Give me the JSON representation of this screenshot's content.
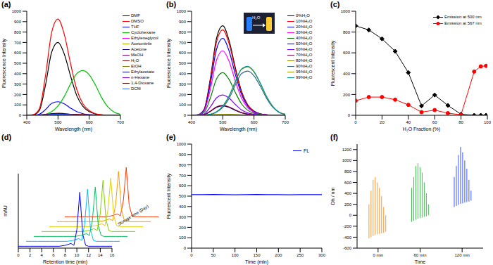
{
  "chart_data": [
    {
      "type": "line",
      "title": "(a)",
      "x_label": "Wavelength (nm)",
      "y_label": "Fluorescence Intensity",
      "x": [
        400,
        420,
        440,
        460,
        480,
        500,
        520,
        540,
        560,
        580,
        600,
        620,
        640,
        660,
        680,
        700
      ],
      "xlim": [
        400,
        700
      ],
      "xticks": [
        400,
        500,
        600,
        700
      ],
      "ylim": [
        0,
        1000
      ],
      "yticks": [
        0,
        100,
        200,
        300,
        400,
        500,
        600,
        700,
        800,
        900,
        1000
      ],
      "legend": "right",
      "series": [
        {
          "name": "DMF",
          "color": "#000000",
          "values": [
            0,
            4,
            45,
            290,
            610,
            700,
            590,
            380,
            190,
            85,
            35,
            12,
            4,
            1,
            0,
            0
          ]
        },
        {
          "name": "DMSO",
          "color": "#ff0000",
          "values": [
            0,
            5,
            60,
            380,
            800,
            925,
            780,
            500,
            250,
            110,
            45,
            15,
            5,
            2,
            0,
            0
          ]
        },
        {
          "name": "THF",
          "color": "#0000ff",
          "values": [
            0,
            1,
            10,
            55,
            115,
            130,
            110,
            70,
            35,
            15,
            6,
            2,
            1,
            0,
            0,
            0
          ]
        },
        {
          "name": "Cyclohexane",
          "color": "#00c000",
          "values": [
            0,
            0,
            2,
            10,
            35,
            90,
            180,
            300,
            400,
            430,
            390,
            290,
            170,
            80,
            30,
            10
          ]
        },
        {
          "name": "Ethyleneglycol",
          "color": "#ff00ff",
          "values": [
            0,
            0,
            1,
            4,
            8,
            10,
            8,
            5,
            3,
            2,
            1,
            0,
            0,
            0,
            0,
            0
          ]
        },
        {
          "name": "Acetonitrile",
          "color": "#b0b000",
          "values": [
            0,
            0,
            1,
            3,
            6,
            8,
            7,
            5,
            3,
            2,
            1,
            0,
            0,
            0,
            0,
            0
          ]
        },
        {
          "name": "Acetone",
          "color": "#000080",
          "values": [
            0,
            0,
            2,
            5,
            9,
            12,
            10,
            7,
            4,
            2,
            1,
            0,
            0,
            0,
            0,
            0
          ]
        },
        {
          "name": "MeOH",
          "color": "#800080",
          "values": [
            0,
            0,
            1,
            3,
            7,
            9,
            8,
            6,
            4,
            2,
            1,
            0,
            0,
            0,
            0,
            0
          ]
        },
        {
          "name": "H₂O",
          "color": "#800000",
          "values": [
            0,
            0,
            1,
            2,
            4,
            6,
            7,
            8,
            8,
            7,
            5,
            3,
            2,
            1,
            0,
            0
          ]
        },
        {
          "name": "EtOH",
          "color": "#808000",
          "values": [
            0,
            0,
            1,
            3,
            6,
            8,
            7,
            5,
            3,
            2,
            1,
            0,
            0,
            0,
            0,
            0
          ]
        },
        {
          "name": "Ethylacetate",
          "color": "#0000a0",
          "values": [
            0,
            0,
            2,
            6,
            12,
            15,
            12,
            8,
            4,
            2,
            1,
            0,
            0,
            0,
            0,
            0
          ]
        },
        {
          "name": "n-Hexane",
          "color": "#9900cc",
          "values": [
            0,
            0,
            1,
            2,
            4,
            5,
            4,
            3,
            2,
            1,
            0,
            0,
            0,
            0,
            0,
            0
          ]
        },
        {
          "name": "1,4-Dioxane",
          "color": "#660000",
          "values": [
            0,
            0,
            2,
            8,
            16,
            20,
            16,
            10,
            5,
            2,
            1,
            0,
            0,
            0,
            0,
            0
          ]
        },
        {
          "name": "DCM",
          "color": "#3366ff",
          "values": [
            0,
            0,
            1,
            4,
            8,
            10,
            8,
            6,
            3,
            2,
            1,
            0,
            0,
            0,
            0,
            0
          ]
        }
      ]
    },
    {
      "type": "line",
      "title": "(b)",
      "x_label": "Wavelength (nm)",
      "y_label": "Fluorescence Intensity",
      "annotations": [
        "H₂O"
      ],
      "x": [
        400,
        420,
        440,
        460,
        480,
        500,
        520,
        540,
        560,
        580,
        600,
        620,
        640,
        660,
        680,
        700
      ],
      "xlim": [
        400,
        700
      ],
      "xticks": [
        400,
        500,
        600,
        700
      ],
      "ylim": [
        0,
        1000
      ],
      "yticks": [
        0,
        100,
        200,
        300,
        400,
        500,
        600,
        700,
        800,
        900,
        1000
      ],
      "legend": "right",
      "series": [
        {
          "name": "0%H₂O",
          "color": "#000000",
          "values": [
            0,
            5,
            55,
            350,
            740,
            860,
            720,
            460,
            230,
            100,
            40,
            14,
            5,
            2,
            0,
            0
          ]
        },
        {
          "name": "10%H₂O",
          "color": "#ff0000",
          "values": [
            0,
            5,
            52,
            335,
            705,
            820,
            690,
            440,
            220,
            95,
            38,
            13,
            5,
            2,
            0,
            0
          ]
        },
        {
          "name": "20%H₂O",
          "color": "#0000ff",
          "values": [
            0,
            4,
            47,
            300,
            635,
            740,
            620,
            395,
            200,
            86,
            34,
            12,
            4,
            1,
            0,
            0
          ]
        },
        {
          "name": "30%H₂O",
          "color": "#ff00ff",
          "values": [
            0,
            3,
            40,
            250,
            530,
            620,
            520,
            330,
            165,
            72,
            28,
            10,
            3,
            1,
            0,
            0
          ]
        },
        {
          "name": "40%H₂O",
          "color": "#008000",
          "values": [
            0,
            2,
            26,
            165,
            350,
            410,
            345,
            220,
            110,
            48,
            19,
            7,
            2,
            1,
            0,
            0
          ]
        },
        {
          "name": "50%H₂O",
          "color": "#000080",
          "values": [
            0,
            1,
            6,
            37,
            77,
            90,
            76,
            48,
            24,
            11,
            4,
            2,
            1,
            0,
            0,
            0
          ]
        },
        {
          "name": "60%H₂O",
          "color": "#8000ff",
          "values": [
            0,
            1,
            12,
            80,
            167,
            195,
            165,
            105,
            52,
            23,
            9,
            3,
            1,
            0,
            0,
            0
          ]
        },
        {
          "name": "70%H₂O",
          "color": "#800040",
          "values": [
            0,
            1,
            6,
            38,
            81,
            95,
            80,
            51,
            26,
            11,
            5,
            2,
            1,
            0,
            0,
            0
          ]
        },
        {
          "name": "80%H₂O",
          "color": "#808000",
          "values": [
            0,
            0,
            1,
            4,
            8,
            10,
            9,
            7,
            5,
            3,
            2,
            1,
            0,
            0,
            0,
            0
          ]
        },
        {
          "name": "90%H₂O",
          "color": "#336699",
          "values": [
            0,
            0,
            2,
            8,
            30,
            75,
            160,
            290,
            400,
            425,
            380,
            280,
            165,
            78,
            28,
            9
          ]
        },
        {
          "name": "95%H₂O",
          "color": "#999900",
          "values": [
            0,
            0,
            2,
            9,
            33,
            85,
            180,
            320,
            440,
            465,
            415,
            305,
            180,
            85,
            30,
            10
          ]
        },
        {
          "name": "99%H₂O",
          "color": "#009999",
          "values": [
            0,
            0,
            2,
            9,
            34,
            88,
            185,
            325,
            445,
            470,
            420,
            310,
            182,
            86,
            31,
            10
          ]
        }
      ]
    },
    {
      "type": "line",
      "title": "(c)",
      "x_label": "H₂O Fraction (%)",
      "y_label": "Fluorescent Intensity",
      "x": [
        0,
        10,
        20,
        30,
        40,
        50,
        60,
        70,
        80,
        90,
        95,
        99
      ],
      "xlim": [
        0,
        100
      ],
      "xticks": [
        0,
        20,
        40,
        60,
        80,
        100
      ],
      "ylim": [
        0,
        1000
      ],
      "yticks": [
        0,
        200,
        400,
        600,
        800,
        1000
      ],
      "legend": "upper right",
      "series": [
        {
          "name": "Emission at 500 nm",
          "color": "#000000",
          "marker": "diamond",
          "values": [
            860,
            820,
            735,
            615,
            410,
            90,
            195,
            95,
            10,
            0,
            0,
            0
          ]
        },
        {
          "name": "Emission at 567 nm",
          "color": "#ff0000",
          "marker": "circle",
          "values": [
            140,
            175,
            175,
            150,
            100,
            30,
            50,
            20,
            5,
            420,
            470,
            475
          ]
        }
      ]
    },
    {
      "type": "line",
      "title": "(d)",
      "x_label": "Retention time (min)",
      "y_label": "mAU",
      "z_label": "Storage time (Day)",
      "x": [
        0,
        1,
        2,
        3,
        4,
        5,
        6,
        7,
        8,
        9,
        9.5,
        10,
        10.5,
        11,
        11.5,
        12,
        13,
        14,
        15,
        16
      ],
      "xlim": [
        0,
        16
      ],
      "xticks": [
        0,
        2,
        4,
        6,
        8,
        10,
        12,
        14,
        16
      ],
      "ylim": [
        0,
        80
      ],
      "tick_labels": "x",
      "series": [
        {
          "color": "#0000ff",
          "values": [
            2,
            2,
            2,
            2,
            2,
            2,
            2,
            2,
            3,
            5,
            3,
            20,
            60,
            15,
            3,
            2,
            2,
            2,
            2,
            2
          ]
        },
        {
          "color": "#00bfff",
          "values": [
            2,
            2,
            2,
            2,
            2,
            2,
            2,
            2,
            3,
            5,
            3,
            20,
            58,
            15,
            3,
            2,
            2,
            2,
            2,
            2
          ]
        },
        {
          "color": "#00c060",
          "values": [
            2,
            2,
            2,
            2,
            2,
            2,
            2,
            2,
            3,
            5,
            3,
            19,
            55,
            14,
            3,
            2,
            2,
            2,
            2,
            2
          ]
        },
        {
          "color": "#80d000",
          "values": [
            2,
            2,
            2,
            2,
            2,
            2,
            2,
            2,
            3,
            5,
            3,
            20,
            57,
            15,
            3,
            2,
            2,
            2,
            2,
            2
          ]
        },
        {
          "color": "#e0d000",
          "values": [
            2,
            2,
            2,
            2,
            2,
            2,
            2,
            2,
            3,
            5,
            3,
            19,
            54,
            14,
            3,
            2,
            2,
            2,
            2,
            2
          ]
        },
        {
          "color": "#ff9900",
          "values": [
            2,
            2,
            2,
            2,
            2,
            2,
            2,
            2,
            3,
            5,
            3,
            20,
            56,
            15,
            3,
            2,
            2,
            2,
            2,
            2
          ]
        },
        {
          "color": "#ff3300",
          "values": [
            2,
            2,
            2,
            2,
            2,
            2,
            2,
            2,
            3,
            5,
            3,
            19,
            55,
            14,
            3,
            2,
            2,
            2,
            2,
            2
          ]
        }
      ]
    },
    {
      "type": "line",
      "title": "(e)",
      "x_label": "Time (min)",
      "y_label": "Fluorescent Intensity",
      "x": [
        0,
        25,
        50,
        75,
        100,
        125,
        150,
        175,
        200,
        225,
        250,
        275,
        300
      ],
      "xlim": [
        0,
        300
      ],
      "xticks": [
        0,
        50,
        100,
        150,
        200,
        250,
        300
      ],
      "ylim": [
        0,
        1000
      ],
      "yticks": [
        0,
        100,
        200,
        300,
        400,
        500,
        600,
        700,
        800,
        900,
        1000
      ],
      "legend": "upper right",
      "series": [
        {
          "name": "FL",
          "color": "#0000ff",
          "values": [
            515,
            514,
            516,
            515,
            513,
            515,
            516,
            514,
            515,
            513,
            514,
            515,
            514
          ]
        }
      ]
    },
    {
      "type": "bar",
      "title": "(f)",
      "x_label": "Time",
      "y_label": "Dh / nm",
      "xlim": [
        -30,
        150
      ],
      "xticks": [
        {
          "value": 0,
          "label": "0 min"
        },
        {
          "value": 60,
          "label": "60 min"
        },
        {
          "value": 120,
          "label": "120 min"
        }
      ],
      "ylim": [
        -600,
        1300
      ],
      "yticks": [
        -600,
        -400,
        -200,
        0,
        200,
        400,
        600,
        800,
        1000,
        1200
      ],
      "series": [
        {
          "color": "#ff8c1a",
          "x": [
            -12,
            -9,
            -6,
            -3,
            0,
            3,
            6,
            9,
            12
          ],
          "low": [
            -420,
            -400,
            -380,
            -360,
            -350,
            -340,
            -330,
            -320,
            -300
          ],
          "high": [
            200,
            450,
            650,
            700,
            600,
            500,
            350,
            150,
            0
          ]
        },
        {
          "color": "#22bb33",
          "x": [
            48,
            51,
            54,
            57,
            60,
            63,
            66,
            69,
            72
          ],
          "low": [
            -120,
            -100,
            -80,
            -60,
            -50,
            -40,
            -30,
            -20,
            0
          ],
          "high": [
            500,
            700,
            900,
            950,
            880,
            780,
            600,
            400,
            200
          ]
        },
        {
          "color": "#2244ff",
          "x": [
            108,
            111,
            114,
            117,
            120,
            123,
            126,
            129,
            132
          ],
          "low": [
            150,
            170,
            190,
            210,
            220,
            230,
            240,
            250,
            270
          ],
          "high": [
            700,
            900,
            1100,
            1250,
            1150,
            1000,
            850,
            650,
            450
          ]
        }
      ]
    }
  ]
}
